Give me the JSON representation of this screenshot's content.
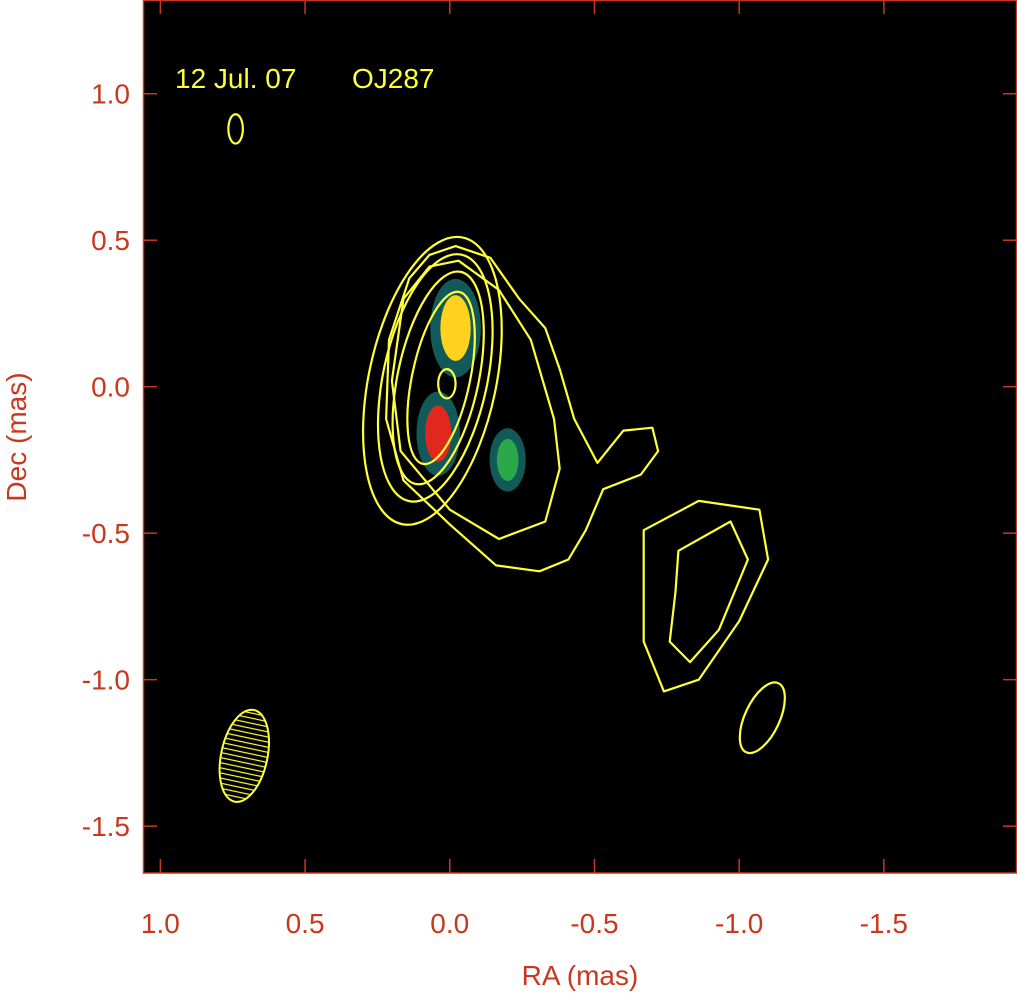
{
  "chart_data": {
    "type": "contour",
    "title": "12 Jul. 07",
    "source": "OJ287",
    "x_label": "RA (mas)",
    "y_label": "Dec (mas)",
    "xlim": [
      1.06,
      -1.96
    ],
    "ylim": [
      -1.66,
      1.32
    ],
    "xticks": [
      {
        "value": 1,
        "label": "1.0"
      },
      0.5,
      {
        "value": 0,
        "label": "0.0"
      },
      -0.5,
      {
        "value": -1,
        "label": "-1.0"
      },
      -1.5
    ],
    "yticks": [
      {
        "value": 1,
        "label": "1.0"
      },
      0.5,
      {
        "value": 0,
        "label": "0.0"
      },
      -0.5,
      {
        "value": -1,
        "label": "-1.0"
      },
      -1.5
    ],
    "contour_color": "#ffff3c",
    "contours": [
      {
        "x": [
          -0.02,
          -0.14,
          -0.24,
          -0.33,
          -0.38,
          -0.43,
          -0.51,
          -0.6,
          -0.7,
          -0.72,
          -0.66,
          -0.53,
          -0.47,
          -0.41,
          -0.31,
          -0.16,
          0.0,
          0.16,
          0.22,
          0.21,
          0.14,
          0.07
        ],
        "y": [
          0.48,
          0.44,
          0.3,
          0.2,
          0.06,
          -0.11,
          -0.26,
          -0.15,
          -0.14,
          -0.22,
          -0.3,
          -0.35,
          -0.49,
          -0.59,
          -0.63,
          -0.61,
          -0.47,
          -0.32,
          -0.11,
          0.16,
          0.37,
          0.45
        ]
      },
      {
        "x": [
          -0.03,
          -0.17,
          -0.28,
          -0.36,
          -0.38,
          -0.33,
          -0.17,
          0.0,
          0.17,
          0.2,
          0.16,
          0.07
        ],
        "y": [
          0.43,
          0.33,
          0.16,
          -0.11,
          -0.28,
          -0.46,
          -0.52,
          -0.42,
          -0.22,
          0.02,
          0.3,
          0.41
        ]
      },
      {
        "x": [
          -0.67,
          -0.86,
          -1.07,
          -1.1,
          -1.0,
          -0.86,
          -0.74,
          -0.67
        ],
        "y": [
          -0.49,
          -0.39,
          -0.42,
          -0.59,
          -0.8,
          -1.0,
          -1.04,
          -0.87
        ]
      },
      {
        "x": [
          -0.79,
          -0.97,
          -1.03,
          -0.93,
          -0.83,
          -0.76,
          -0.78
        ],
        "y": [
          -0.56,
          -0.46,
          -0.59,
          -0.83,
          -0.94,
          -0.87,
          -0.7
        ]
      }
    ],
    "ellipse_contours": [
      {
        "x": 0.06,
        "y": 0.02,
        "rx": 0.22,
        "ry": 0.5,
        "angle": 12
      },
      {
        "x": 0.05,
        "y": 0.03,
        "rx": 0.18,
        "ry": 0.43,
        "angle": 12
      },
      {
        "x": 0.04,
        "y": 0.03,
        "rx": 0.14,
        "ry": 0.37,
        "angle": 12
      },
      {
        "x": 0.03,
        "y": 0.03,
        "rx": 0.1,
        "ry": 0.3,
        "angle": 12
      },
      {
        "x": 0.01,
        "y": 0.01,
        "rx": 0.03,
        "ry": 0.05,
        "angle": 0
      },
      {
        "x": -1.08,
        "y": -1.13,
        "rx": 0.06,
        "ry": 0.13,
        "angle": 25
      },
      {
        "x": 0.74,
        "y": 0.88,
        "rx": 0.025,
        "ry": 0.05,
        "angle": 0
      }
    ],
    "components": [
      {
        "x": -0.02,
        "y": 0.2,
        "rx": 0.07,
        "ry": 0.14,
        "color": "#ffd21e"
      },
      {
        "x": 0.04,
        "y": -0.16,
        "rx": 0.06,
        "ry": 0.12,
        "color": "#e0281e"
      },
      {
        "x": -0.2,
        "y": -0.25,
        "rx": 0.05,
        "ry": 0.09,
        "color": "#2aa84a"
      }
    ],
    "beam": {
      "x": 0.71,
      "y": -1.26,
      "rx": 0.08,
      "ry": 0.16,
      "angle": 12
    }
  }
}
